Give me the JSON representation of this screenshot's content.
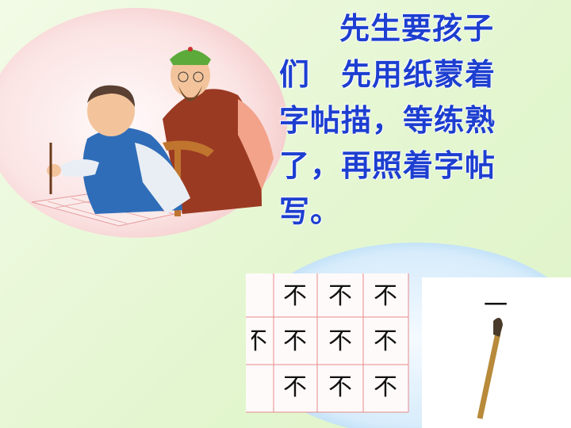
{
  "text": {
    "lines": [
      "先生要孩子",
      "们　先用纸蒙着",
      "字帖描，等练熟",
      "了，再照着字帖",
      "写。"
    ]
  },
  "copybook": {
    "cells": [
      "不",
      "不",
      "不",
      "不",
      "不",
      "不",
      "不",
      "不",
      "不"
    ],
    "partial": "不",
    "stroke": "一"
  }
}
